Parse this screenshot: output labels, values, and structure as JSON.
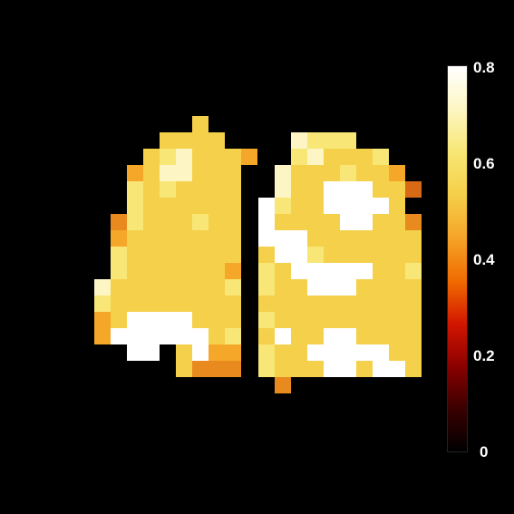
{
  "image": {
    "description_free": true,
    "colormap": [
      "#000000",
      "#3a0000",
      "#8a0000",
      "#d21500",
      "#f06a00",
      "#f5a72a",
      "#f5d04a",
      "#f8e776",
      "#fdf6c4",
      "#ffffff"
    ]
  },
  "colorbar": {
    "ticks": [
      {
        "label": "0.8",
        "value": 0.8
      },
      {
        "label": "0.6",
        "value": 0.6
      },
      {
        "label": "0.4",
        "value": 0.4
      },
      {
        "label": "0.2",
        "value": 0.2
      },
      {
        "label": "0",
        "value": 0
      }
    ],
    "range": [
      0,
      0.8
    ]
  }
}
